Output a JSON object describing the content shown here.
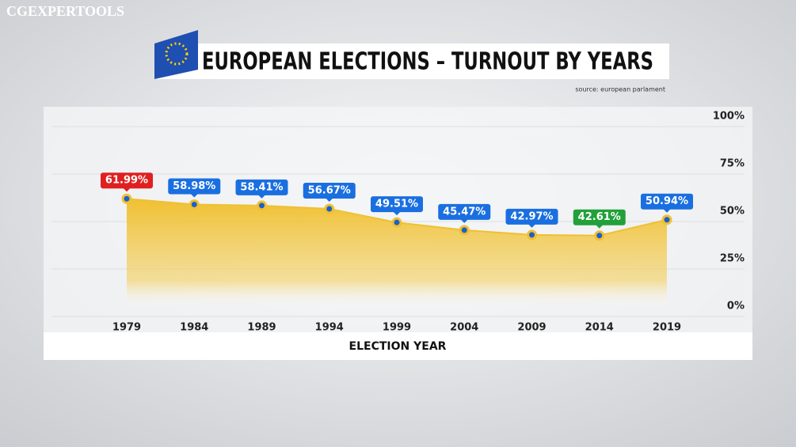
{
  "watermark": "CGEXPERTOOLS",
  "chart_data": {
    "type": "area",
    "title": "EUROPEAN ELECTIONS – TURNOUT BY YEARS",
    "subtitle": "source: european parlament",
    "x_label": "ELECTION YEAR",
    "categories": [
      "1979",
      "1984",
      "1989",
      "1994",
      "1999",
      "2004",
      "2009",
      "2014",
      "2019"
    ],
    "values": [
      61.99,
      58.98,
      58.41,
      56.67,
      49.51,
      45.47,
      42.97,
      42.61,
      50.94
    ],
    "value_labels": [
      "61.99%",
      "58.98%",
      "58.41%",
      "56.67%",
      "49.51%",
      "45.47%",
      "42.97%",
      "42.61%",
      "50.94%"
    ],
    "label_colors": [
      "#e02020",
      "#1a6fe0",
      "#1a6fe0",
      "#1a6fe0",
      "#1a6fe0",
      "#1a6fe0",
      "#1a6fe0",
      "#22a03a",
      "#1a6fe0"
    ],
    "color": "#f0c030",
    "marker_color": "#1a5fd0",
    "ylim": [
      0,
      100
    ],
    "yticks": [
      {
        "value": 0,
        "label": "0%"
      },
      {
        "value": 25,
        "label": "25%"
      },
      {
        "value": 50,
        "label": "50%"
      },
      {
        "value": 75,
        "label": "75%"
      },
      {
        "value": 100,
        "label": "100%"
      }
    ],
    "grid": true
  }
}
